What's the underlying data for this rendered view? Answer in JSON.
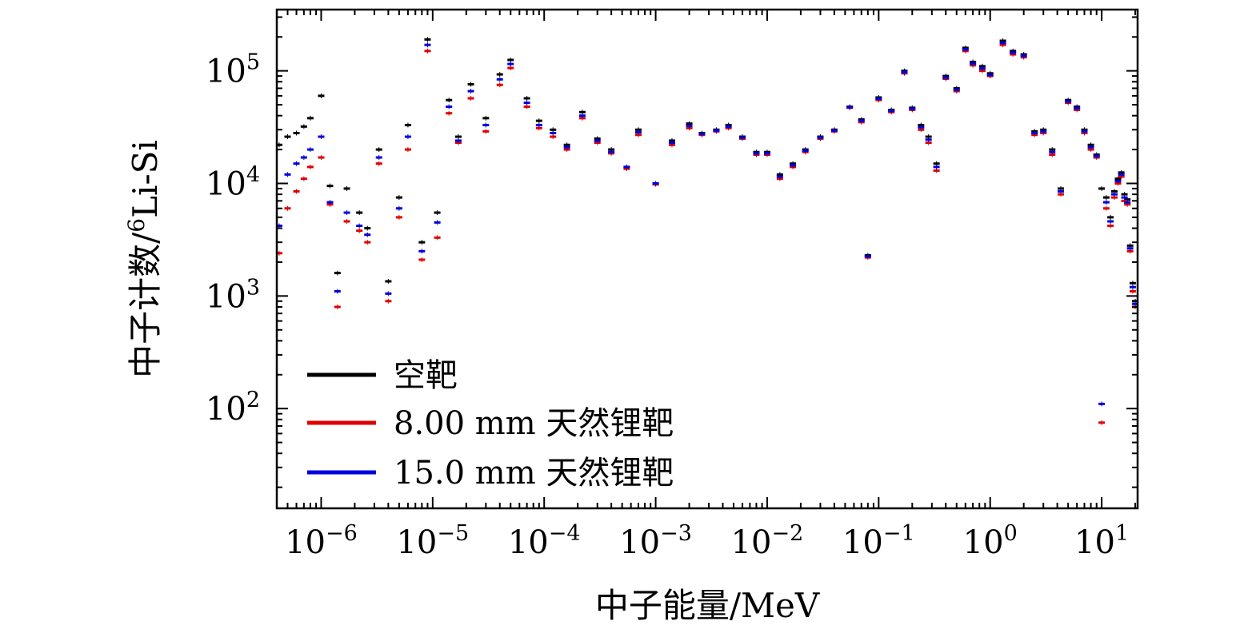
{
  "chart_data": {
    "type": "scatter",
    "title": "",
    "xlabel": "中子能量/MeV",
    "ylabel_prefix": "中子计数/",
    "ylabel_sup": "6",
    "ylabel_suffix": "Li-Si",
    "xscale": "log",
    "yscale": "log",
    "xlim": [
      4e-07,
      21
    ],
    "ylim": [
      13,
      350000
    ],
    "xticks": [
      {
        "base": "10",
        "exp": "−6",
        "value": 1e-06
      },
      {
        "base": "10",
        "exp": "−5",
        "value": 1e-05
      },
      {
        "base": "10",
        "exp": "−4",
        "value": 0.0001
      },
      {
        "base": "10",
        "exp": "−3",
        "value": 0.001
      },
      {
        "base": "10",
        "exp": "−2",
        "value": 0.01
      },
      {
        "base": "10",
        "exp": "−1",
        "value": 0.1
      },
      {
        "base": "10",
        "exp": "0",
        "value": 1
      },
      {
        "base": "10",
        "exp": "1",
        "value": 10
      }
    ],
    "yticks": [
      {
        "base": "10",
        "exp": "2",
        "value": 100
      },
      {
        "base": "10",
        "exp": "3",
        "value": 1000
      },
      {
        "base": "10",
        "exp": "4",
        "value": 10000
      },
      {
        "base": "10",
        "exp": "5",
        "value": 100000
      }
    ],
    "legend_position": "bottom-left",
    "grid": false,
    "series": [
      {
        "name": "空靶",
        "color": "#000000"
      },
      {
        "name": "8.00 mm 天然锂靶",
        "color": "#e00000"
      },
      {
        "name": "15.0 mm 天然锂靶",
        "color": "#0000dd"
      }
    ],
    "x": [
      4.2e-07,
      5e-07,
      6e-07,
      7e-07,
      8e-07,
      1e-06,
      1.2e-06,
      1.4e-06,
      1.7e-06,
      2.2e-06,
      2.6e-06,
      3.3e-06,
      4e-06,
      5e-06,
      6e-06,
      8e-06,
      9e-06,
      1.1e-05,
      1.4e-05,
      1.7e-05,
      2.2e-05,
      3e-05,
      4e-05,
      5e-05,
      7e-05,
      9e-05,
      0.00012,
      0.00016,
      0.00022,
      0.0003,
      0.0004,
      0.00055,
      0.0007,
      0.001,
      0.0014,
      0.002,
      0.0026,
      0.0035,
      0.0045,
      0.006,
      0.008,
      0.01,
      0.013,
      0.017,
      0.022,
      0.03,
      0.04,
      0.055,
      0.07,
      0.08,
      0.1,
      0.13,
      0.17,
      0.2,
      0.24,
      0.28,
      0.33,
      0.4,
      0.5,
      0.6,
      0.7,
      0.85,
      1,
      1.3,
      1.6,
      2,
      2.5,
      3,
      3.6,
      4.3,
      5,
      6,
      7,
      8,
      9,
      10,
      11,
      12,
      13,
      14,
      15,
      16,
      17,
      18,
      19,
      20
    ],
    "y_empty": [
      22000,
      26000,
      28000,
      32000,
      38000,
      60000,
      9500,
      1600,
      9000,
      5500,
      4000,
      20000,
      1350,
      7500,
      33000,
      3000,
      190000,
      5500,
      55000,
      26000,
      76000,
      38000,
      93000,
      125000,
      57000,
      36000,
      30000,
      22000,
      43000,
      25000,
      20000,
      14000,
      30000,
      10000,
      24000,
      34000,
      28000,
      30000,
      33000,
      26000,
      19000,
      19000,
      12000,
      15000,
      20000,
      26000,
      30000,
      48000,
      37000,
      2300,
      58000,
      45000,
      100000,
      47000,
      33000,
      26000,
      15000,
      90000,
      70000,
      160000,
      120000,
      110000,
      95000,
      185000,
      150000,
      140000,
      29000,
      30000,
      20000,
      9000,
      55000,
      48000,
      30000,
      22000,
      18000,
      9000,
      7500,
      5000,
      8500,
      11000,
      12500,
      8000,
      7200,
      2800,
      1300,
      900
    ],
    "y_8mm": [
      2400,
      6000,
      8500,
      11000,
      14000,
      17000,
      6500,
      800,
      4600,
      3800,
      3000,
      15000,
      900,
      5000,
      20000,
      2100,
      150000,
      3300,
      42000,
      23000,
      57000,
      29000,
      75000,
      106000,
      48000,
      31000,
      26000,
      20000,
      38000,
      23000,
      18500,
      13500,
      27000,
      9800,
      22000,
      31000,
      27000,
      29000,
      31000,
      25000,
      18000,
      18000,
      11000,
      14000,
      19000,
      25000,
      29000,
      47000,
      35000,
      2200,
      55000,
      43000,
      95000,
      45000,
      30000,
      23000,
      13000,
      85000,
      66000,
      150000,
      112000,
      100000,
      90000,
      170000,
      140000,
      132000,
      27000,
      28000,
      18000,
      8000,
      52000,
      45000,
      28000,
      20000,
      17000,
      75,
      6000,
      4200,
      7500,
      10000,
      11500,
      7000,
      6500,
      2500,
      1100,
      800
    ],
    "y_15mm": [
      4200,
      12000,
      15000,
      17000,
      20000,
      26000,
      6800,
      1100,
      5500,
      4200,
      3500,
      17000,
      1050,
      6000,
      26000,
      2500,
      170000,
      4500,
      48000,
      24000,
      66000,
      33000,
      84000,
      115000,
      52000,
      33000,
      28000,
      21000,
      40000,
      24000,
      19000,
      14000,
      28500,
      10000,
      23000,
      32500,
      27500,
      29500,
      32000,
      25500,
      18500,
      18500,
      11500,
      14500,
      19500,
      25500,
      29500,
      47500,
      36000,
      2250,
      56500,
      44000,
      97000,
      46000,
      31500,
      24500,
      14000,
      87000,
      68000,
      155000,
      116000,
      105000,
      92000,
      177000,
      145000,
      136000,
      28000,
      29000,
      19000,
      8500,
      53500,
      46500,
      29000,
      21000,
      17500,
      110,
      6800,
      4600,
      8000,
      10500,
      12000,
      7500,
      6800,
      2650,
      1200,
      850
    ]
  }
}
